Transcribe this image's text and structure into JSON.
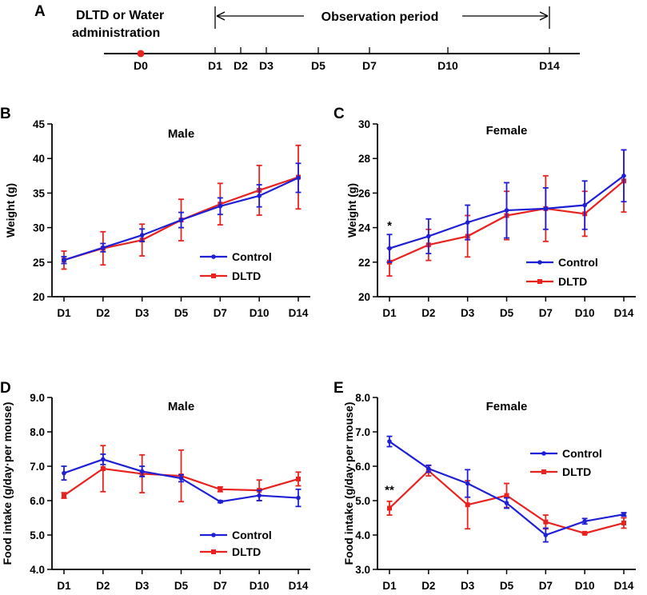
{
  "timeline": {
    "panel_label": "A",
    "admin_text_line1": "DLTD or Water",
    "admin_text_line2": "administration",
    "observation_label": "Observation period",
    "days": [
      "D0",
      "D1",
      "D2",
      "D3",
      "D5",
      "D7",
      "D10",
      "D14"
    ],
    "marker_day": "D0",
    "marker_color": "#e8231f"
  },
  "colors": {
    "control": "#1f1fd6",
    "dltd": "#e8231f"
  },
  "chart_data": [
    {
      "id": "B",
      "panel_label": "B",
      "type": "line",
      "title": "Male",
      "xlabel": "",
      "ylabel": "Weight (g)",
      "categories": [
        "D1",
        "D2",
        "D3",
        "D5",
        "D7",
        "D10",
        "D14"
      ],
      "ylim": [
        20,
        45
      ],
      "yticks": [
        20,
        25,
        30,
        35,
        40,
        45
      ],
      "tick_decimals": 0,
      "legend": "bottom-right",
      "annotations": [],
      "series": [
        {
          "name": "Control",
          "values": [
            25.3,
            27.1,
            28.9,
            31.1,
            33.1,
            34.6,
            37.2
          ],
          "errors": [
            0.5,
            0.6,
            0.9,
            1.1,
            1.2,
            1.6,
            2.1
          ]
        },
        {
          "name": "DLTD",
          "values": [
            25.3,
            27.0,
            28.2,
            31.1,
            33.4,
            35.4,
            37.3
          ],
          "errors": [
            1.3,
            2.4,
            2.3,
            3.0,
            3.0,
            3.6,
            4.6
          ]
        }
      ]
    },
    {
      "id": "C",
      "panel_label": "C",
      "type": "line",
      "title": "Female",
      "xlabel": "",
      "ylabel": "Weight (g)",
      "categories": [
        "D1",
        "D2",
        "D3",
        "D5",
        "D7",
        "D10",
        "D14"
      ],
      "ylim": [
        20,
        30
      ],
      "yticks": [
        20,
        22,
        24,
        26,
        28,
        30
      ],
      "tick_decimals": 0,
      "legend": "bottom-right",
      "annotations": [
        {
          "text": "*",
          "category": "D1",
          "y": 23.9
        }
      ],
      "series": [
        {
          "name": "Control",
          "values": [
            22.8,
            23.5,
            24.3,
            25.0,
            25.1,
            25.3,
            27.0
          ],
          "errors": [
            0.8,
            1.0,
            1.0,
            1.6,
            1.2,
            1.4,
            1.5
          ]
        },
        {
          "name": "DLTD",
          "values": [
            22.0,
            23.0,
            23.5,
            24.7,
            25.1,
            24.8,
            26.7
          ],
          "errors": [
            0.8,
            0.9,
            1.2,
            1.4,
            1.9,
            1.3,
            1.8
          ]
        }
      ]
    },
    {
      "id": "D",
      "panel_label": "D",
      "type": "line",
      "title": "Male",
      "xlabel": "",
      "ylabel": "Food intake (g/day·per mouse)",
      "categories": [
        "D1",
        "D2",
        "D3",
        "D5",
        "D7",
        "D10",
        "D14"
      ],
      "ylim": [
        4.0,
        9.0
      ],
      "yticks": [
        4.0,
        5.0,
        6.0,
        7.0,
        8.0,
        9.0
      ],
      "tick_decimals": 1,
      "legend": "bottom-right",
      "annotations": [],
      "series": [
        {
          "name": "Control",
          "values": [
            6.8,
            7.2,
            6.85,
            6.65,
            5.97,
            6.15,
            6.08
          ],
          "errors": [
            0.2,
            0.15,
            0.15,
            0.1,
            0.03,
            0.15,
            0.25
          ]
        },
        {
          "name": "DLTD",
          "values": [
            6.15,
            6.93,
            6.78,
            6.72,
            6.33,
            6.3,
            6.63
          ],
          "errors": [
            0.08,
            0.67,
            0.55,
            0.75,
            0.07,
            0.3,
            0.2
          ]
        }
      ]
    },
    {
      "id": "E",
      "panel_label": "E",
      "type": "line",
      "title": "Female",
      "xlabel": "",
      "ylabel": "Food intake (g/day·per mouse)",
      "categories": [
        "D1",
        "D2",
        "D3",
        "D5",
        "D7",
        "D10",
        "D14"
      ],
      "ylim": [
        3.0,
        8.0
      ],
      "yticks": [
        3.0,
        4.0,
        5.0,
        6.0,
        7.0,
        8.0
      ],
      "tick_decimals": 1,
      "legend": "top-right",
      "annotations": [
        {
          "text": "**",
          "category": "D1",
          "y": 5.2
        }
      ],
      "series": [
        {
          "name": "Control",
          "values": [
            6.72,
            5.93,
            5.5,
            4.93,
            4.0,
            4.4,
            4.6
          ],
          "errors": [
            0.15,
            0.1,
            0.4,
            0.15,
            0.2,
            0.08,
            0.05
          ]
        },
        {
          "name": "DLTD",
          "values": [
            4.78,
            5.87,
            4.88,
            5.15,
            4.38,
            4.05,
            4.35
          ],
          "errors": [
            0.2,
            0.15,
            0.7,
            0.35,
            0.2,
            0.03,
            0.15
          ]
        }
      ]
    }
  ]
}
